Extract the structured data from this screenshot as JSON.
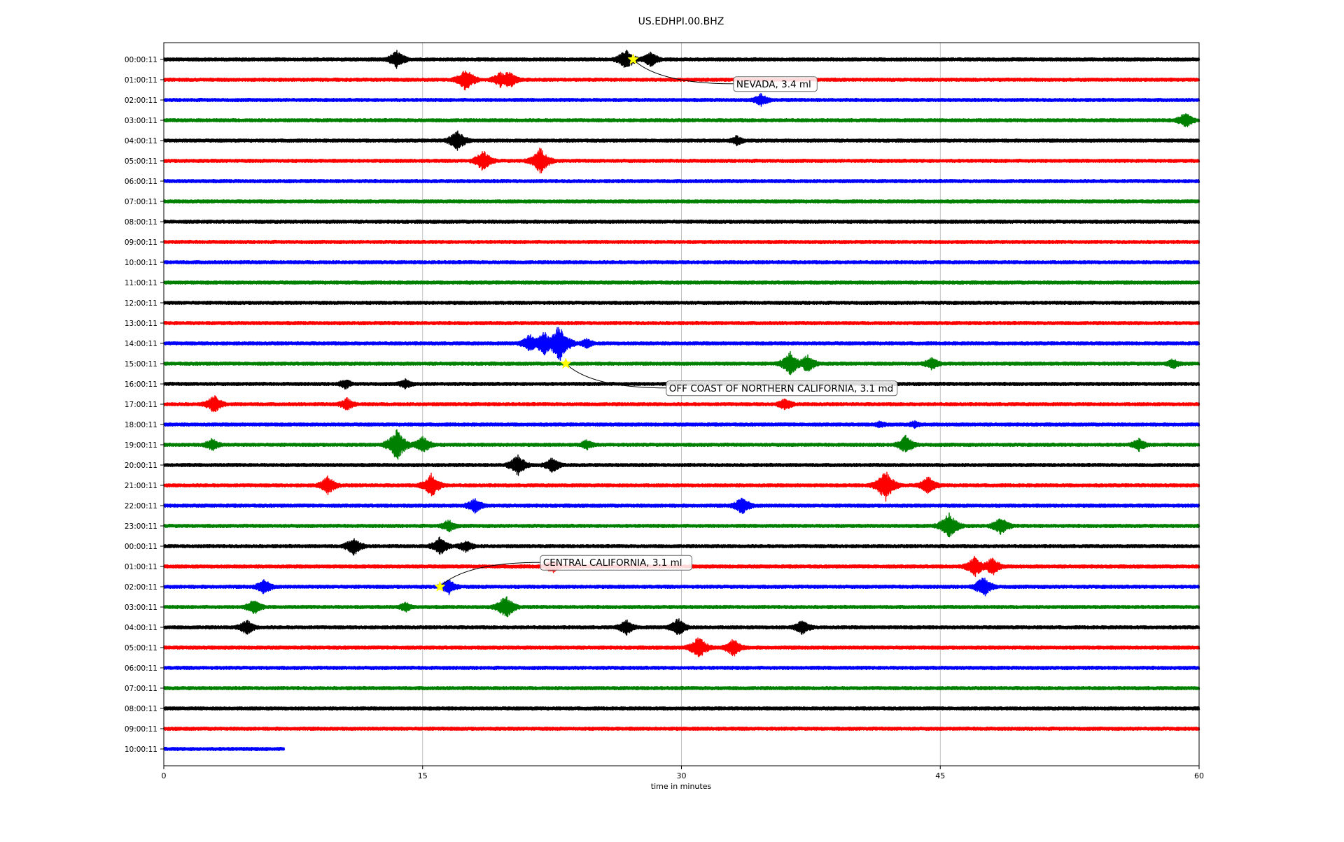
{
  "chart_data": {
    "type": "line",
    "title": "US.EDHPI.00.BHZ",
    "xlabel": "time in minutes",
    "ylabel": "",
    "xlim": [
      0,
      60
    ],
    "x_ticks": [
      0,
      15,
      30,
      45,
      60
    ],
    "x_tick_labels": [
      "0",
      "15",
      "30",
      "45",
      "60"
    ],
    "grid": "vertical lines at x ticks",
    "row_colors": [
      "#000000",
      "#ff0000",
      "#0000ff",
      "#008000"
    ],
    "row_labels": [
      "00:00:11",
      "01:00:11",
      "02:00:11",
      "03:00:11",
      "04:00:11",
      "05:00:11",
      "06:00:11",
      "07:00:11",
      "08:00:11",
      "09:00:11",
      "10:00:11",
      "11:00:11",
      "12:00:11",
      "13:00:11",
      "14:00:11",
      "15:00:11",
      "16:00:11",
      "17:00:11",
      "18:00:11",
      "19:00:11",
      "20:00:11",
      "21:00:11",
      "22:00:11",
      "23:00:11",
      "00:00:11",
      "01:00:11",
      "02:00:11",
      "03:00:11",
      "04:00:11",
      "05:00:11",
      "06:00:11",
      "07:00:11",
      "08:00:11",
      "09:00:11",
      "10:00:11"
    ],
    "last_row_end_minute": 7,
    "bursts": [
      {
        "row": 0,
        "minute": 13.5,
        "amp": 14
      },
      {
        "row": 0,
        "minute": 26.8,
        "amp": 16
      },
      {
        "row": 0,
        "minute": 28.2,
        "amp": 12
      },
      {
        "row": 1,
        "minute": 17.5,
        "amp": 18
      },
      {
        "row": 1,
        "minute": 19.5,
        "amp": 12
      },
      {
        "row": 1,
        "minute": 20.0,
        "amp": 14
      },
      {
        "row": 2,
        "minute": 34.6,
        "amp": 10
      },
      {
        "row": 3,
        "minute": 59.2,
        "amp": 12
      },
      {
        "row": 4,
        "minute": 17.0,
        "amp": 16
      },
      {
        "row": 4,
        "minute": 33.2,
        "amp": 8
      },
      {
        "row": 5,
        "minute": 18.5,
        "amp": 16
      },
      {
        "row": 5,
        "minute": 21.8,
        "amp": 20
      },
      {
        "row": 14,
        "minute": 21.2,
        "amp": 14
      },
      {
        "row": 14,
        "minute": 22.0,
        "amp": 20
      },
      {
        "row": 14,
        "minute": 22.9,
        "amp": 30
      },
      {
        "row": 14,
        "minute": 24.5,
        "amp": 8
      },
      {
        "row": 15,
        "minute": 36.3,
        "amp": 18
      },
      {
        "row": 15,
        "minute": 37.3,
        "amp": 14
      },
      {
        "row": 15,
        "minute": 44.5,
        "amp": 10
      },
      {
        "row": 15,
        "minute": 58.5,
        "amp": 8
      },
      {
        "row": 16,
        "minute": 10.5,
        "amp": 8
      },
      {
        "row": 16,
        "minute": 14.0,
        "amp": 8
      },
      {
        "row": 17,
        "minute": 2.9,
        "amp": 14
      },
      {
        "row": 17,
        "minute": 10.6,
        "amp": 10
      },
      {
        "row": 17,
        "minute": 36.0,
        "amp": 10
      },
      {
        "row": 18,
        "minute": 41.5,
        "amp": 6
      },
      {
        "row": 18,
        "minute": 43.5,
        "amp": 6
      },
      {
        "row": 19,
        "minute": 2.8,
        "amp": 10
      },
      {
        "row": 19,
        "minute": 13.5,
        "amp": 24
      },
      {
        "row": 19,
        "minute": 15.0,
        "amp": 14
      },
      {
        "row": 19,
        "minute": 24.5,
        "amp": 8
      },
      {
        "row": 19,
        "minute": 43.0,
        "amp": 14
      },
      {
        "row": 19,
        "minute": 56.5,
        "amp": 10
      },
      {
        "row": 20,
        "minute": 20.5,
        "amp": 16
      },
      {
        "row": 20,
        "minute": 22.5,
        "amp": 12
      },
      {
        "row": 21,
        "minute": 9.5,
        "amp": 14
      },
      {
        "row": 21,
        "minute": 15.5,
        "amp": 18
      },
      {
        "row": 21,
        "minute": 41.8,
        "amp": 24
      },
      {
        "row": 21,
        "minute": 44.3,
        "amp": 14
      },
      {
        "row": 22,
        "minute": 18.0,
        "amp": 12
      },
      {
        "row": 22,
        "minute": 33.5,
        "amp": 14
      },
      {
        "row": 23,
        "minute": 16.5,
        "amp": 10
      },
      {
        "row": 23,
        "minute": 45.5,
        "amp": 20
      },
      {
        "row": 23,
        "minute": 48.5,
        "amp": 14
      },
      {
        "row": 24,
        "minute": 11.0,
        "amp": 14
      },
      {
        "row": 24,
        "minute": 16.0,
        "amp": 14
      },
      {
        "row": 24,
        "minute": 17.5,
        "amp": 10
      },
      {
        "row": 25,
        "minute": 22.5,
        "amp": 10
      },
      {
        "row": 25,
        "minute": 47.0,
        "amp": 16
      },
      {
        "row": 25,
        "minute": 48.0,
        "amp": 14
      },
      {
        "row": 26,
        "minute": 5.8,
        "amp": 12
      },
      {
        "row": 26,
        "minute": 16.5,
        "amp": 12
      },
      {
        "row": 26,
        "minute": 47.5,
        "amp": 16
      },
      {
        "row": 27,
        "minute": 5.2,
        "amp": 12
      },
      {
        "row": 27,
        "minute": 14.0,
        "amp": 8
      },
      {
        "row": 27,
        "minute": 19.8,
        "amp": 18
      },
      {
        "row": 28,
        "minute": 4.8,
        "amp": 12
      },
      {
        "row": 28,
        "minute": 26.8,
        "amp": 12
      },
      {
        "row": 28,
        "minute": 29.8,
        "amp": 14
      },
      {
        "row": 28,
        "minute": 37.0,
        "amp": 12
      },
      {
        "row": 29,
        "minute": 31.0,
        "amp": 18
      },
      {
        "row": 29,
        "minute": 33.0,
        "amp": 14
      }
    ],
    "events": [
      {
        "row": 0,
        "minute": 27.2,
        "label": "NEVADA, 3.4 ml",
        "label_minute": 33.1,
        "label_row": 1.2
      },
      {
        "row": 15,
        "minute": 23.3,
        "label": "OFF COAST OF NORTHERN CALIFORNIA, 3.1 md",
        "label_minute": 29.2,
        "label_row": 16.2
      },
      {
        "row": 26,
        "minute": 16.0,
        "label": "CENTRAL CALIFORNIA, 3.1 ml",
        "label_minute": 21.9,
        "label_row": 24.8
      }
    ]
  }
}
